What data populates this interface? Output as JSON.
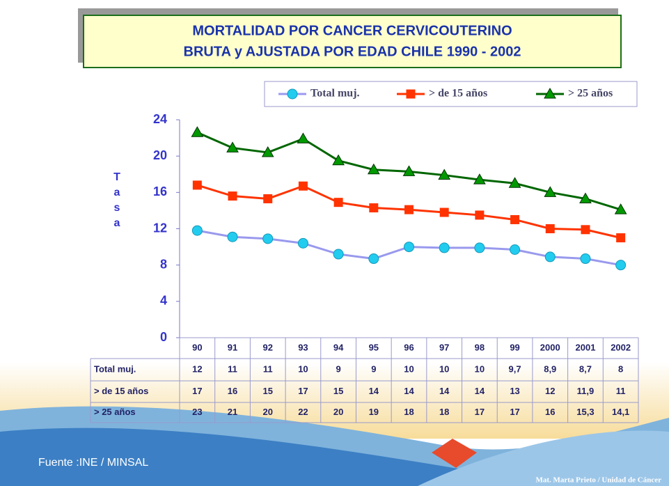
{
  "chart_data": {
    "type": "line",
    "title_lines": [
      "MORTALIDAD POR CANCER CERVICOUTERINO",
      "BRUTA y  AJUSTADA POR EDAD  CHILE 1990 - 2002"
    ],
    "y_label": "Tasa",
    "categories": [
      "90",
      "91",
      "92",
      "93",
      "94",
      "95",
      "96",
      "97",
      "98",
      "99",
      "2000",
      "2001",
      "2002"
    ],
    "ylim": [
      0,
      24
    ],
    "yticks": [
      0,
      4,
      8,
      12,
      16,
      20,
      24
    ],
    "grid": false,
    "series": [
      {
        "name": "Total muj.",
        "color": "#22ccee",
        "line_color": "#9999ee",
        "marker": "circle",
        "values": [
          11.8,
          11.1,
          10.9,
          10.4,
          9.2,
          8.7,
          10.0,
          9.9,
          9.9,
          9.7,
          8.9,
          8.7,
          8.0
        ],
        "value_labels": [
          "12",
          "11",
          "11",
          "10",
          "9",
          "9",
          "10",
          "10",
          "10",
          "9,7",
          "8,9",
          "8,7",
          "8"
        ]
      },
      {
        "name": "> de 15 años",
        "color": "#ff3300",
        "line_color": "#ff3300",
        "marker": "square",
        "values": [
          16.8,
          15.6,
          15.3,
          16.7,
          14.9,
          14.3,
          14.1,
          13.8,
          13.5,
          13.0,
          12.0,
          11.9,
          11.0
        ],
        "value_labels": [
          "17",
          "16",
          "15",
          "17",
          "15",
          "14",
          "14",
          "14",
          "14",
          "13",
          "12",
          "11,9",
          "11"
        ]
      },
      {
        "name": "> 25 años",
        "color": "#009900",
        "line_color": "#006600",
        "marker": "triangle",
        "values": [
          22.6,
          20.9,
          20.4,
          21.9,
          19.5,
          18.5,
          18.3,
          17.9,
          17.4,
          17.0,
          16.0,
          15.3,
          14.1
        ],
        "value_labels": [
          "23",
          "21",
          "20",
          "22",
          "20",
          "19",
          "18",
          "18",
          "17",
          "17",
          "16",
          "15,3",
          "14,1"
        ]
      }
    ],
    "source": "Fuente :INE / MINSAL",
    "credit": "Mat. Marta Prieto / Unidad de Cáncer"
  }
}
